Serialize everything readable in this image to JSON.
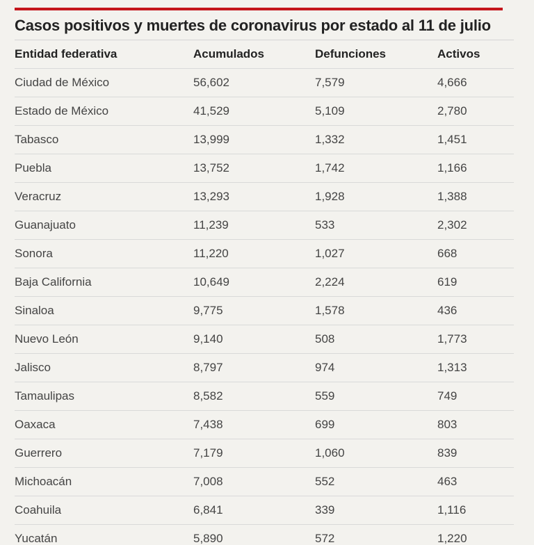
{
  "colors": {
    "accent": "#c4161c",
    "background": "#f3f2ee",
    "text": "#444444",
    "rule": "#d9d9d9"
  },
  "chart_data": {
    "type": "table",
    "title": "Casos positivos y muertes de coronavirus por estado al 11 de julio",
    "columns": [
      "Entidad federativa",
      "Acumulados",
      "Defunciones",
      "Activos"
    ],
    "rows": [
      [
        "Ciudad de México",
        "56,602",
        "7,579",
        "4,666"
      ],
      [
        "Estado de México",
        "41,529",
        "5,109",
        "2,780"
      ],
      [
        "Tabasco",
        "13,999",
        "1,332",
        "1,451"
      ],
      [
        "Puebla",
        "13,752",
        "1,742",
        "1,166"
      ],
      [
        "Veracruz",
        "13,293",
        "1,928",
        "1,388"
      ],
      [
        "Guanajuato",
        "11,239",
        "533",
        "2,302"
      ],
      [
        "Sonora",
        "11,220",
        "1,027",
        "668"
      ],
      [
        "Baja California",
        "10,649",
        "2,224",
        "619"
      ],
      [
        "Sinaloa",
        "9,775",
        "1,578",
        "436"
      ],
      [
        "Nuevo León",
        "9,140",
        "508",
        "1,773"
      ],
      [
        "Jalisco",
        "8,797",
        "974",
        "1,313"
      ],
      [
        "Tamaulipas",
        "8,582",
        "559",
        "749"
      ],
      [
        "Oaxaca",
        "7,438",
        "699",
        "803"
      ],
      [
        "Guerrero",
        "7,179",
        "1,060",
        "839"
      ],
      [
        "Michoacán",
        "7,008",
        "552",
        "463"
      ],
      [
        "Coahuila",
        "6,841",
        "339",
        "1,116"
      ],
      [
        "Yucatán",
        "5,890",
        "572",
        "1,220"
      ]
    ]
  }
}
